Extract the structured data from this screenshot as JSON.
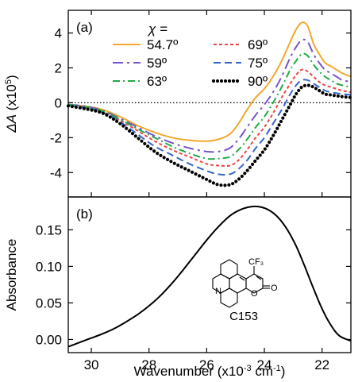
{
  "chart_data": [
    {
      "id": "a",
      "type": "line",
      "panel_label": "(a)",
      "xlabel": "",
      "ylabel": "ΔA (x10⁵)",
      "ylabel_parts": {
        "symbol": "ΔA",
        "open": " (x10",
        "exp": "5",
        "close": ")"
      },
      "xlim": [
        30.8,
        21.0
      ],
      "ylim": [
        -5.4,
        5.3
      ],
      "yticks": [
        4,
        2,
        0,
        -2,
        -4
      ],
      "ytick_labels": [
        "4",
        "2",
        "0",
        "-2",
        "-4"
      ],
      "legend_title": "χ =",
      "legend_placement": "top",
      "grid": false,
      "reference_line": {
        "y": 0,
        "style": "dotted"
      },
      "series": [
        {
          "name": "54.7º",
          "color": "#f2a82c",
          "dash": "solid",
          "x": [
            30.8,
            30.2,
            29.6,
            29.0,
            28.4,
            27.8,
            27.2,
            26.6,
            26.0,
            25.6,
            25.2,
            24.9,
            24.6,
            24.3,
            24.0,
            23.7,
            23.4,
            23.1,
            22.9,
            22.7,
            22.5,
            22.3,
            22.1,
            21.9,
            21.7,
            21.5,
            21.3,
            21.0
          ],
          "y": [
            -0.1,
            -0.2,
            -0.4,
            -0.8,
            -1.3,
            -1.7,
            -2.0,
            -2.15,
            -2.2,
            -2.1,
            -1.8,
            -1.2,
            -0.4,
            0.3,
            0.8,
            1.5,
            2.4,
            3.5,
            4.2,
            4.6,
            4.4,
            3.4,
            2.8,
            2.3,
            2.1,
            1.9,
            1.7,
            1.5
          ]
        },
        {
          "name": "69º",
          "color": "#ee4444",
          "dash": "4,3",
          "x": [
            30.8,
            30.2,
            29.6,
            29.0,
            28.4,
            27.8,
            27.2,
            26.6,
            26.0,
            25.6,
            25.2,
            24.9,
            24.6,
            24.3,
            24.0,
            23.7,
            23.4,
            23.1,
            22.9,
            22.7,
            22.5,
            22.3,
            22.1,
            21.9,
            21.7,
            21.5,
            21.3,
            21.0
          ],
          "y": [
            -0.15,
            -0.25,
            -0.5,
            -1.0,
            -1.6,
            -2.2,
            -2.7,
            -3.1,
            -3.5,
            -3.6,
            -3.6,
            -3.3,
            -2.7,
            -2.0,
            -1.4,
            -0.6,
            0.3,
            1.1,
            1.6,
            1.9,
            1.8,
            1.5,
            1.2,
            1.0,
            0.9,
            0.8,
            0.7,
            0.6
          ]
        },
        {
          "name": "59º",
          "color": "#7755cc",
          "dash": "13,5,3,5",
          "x": [
            30.8,
            30.2,
            29.6,
            29.0,
            28.4,
            27.8,
            27.2,
            26.6,
            26.0,
            25.6,
            25.2,
            24.9,
            24.6,
            24.3,
            24.0,
            23.7,
            23.4,
            23.1,
            22.9,
            22.7,
            22.5,
            22.3,
            22.1,
            21.9,
            21.7,
            21.5,
            21.3,
            21.0
          ],
          "y": [
            -0.1,
            -0.2,
            -0.45,
            -0.9,
            -1.4,
            -1.9,
            -2.3,
            -2.6,
            -2.8,
            -2.8,
            -2.6,
            -2.1,
            -1.4,
            -0.7,
            -0.1,
            0.6,
            1.5,
            2.6,
            3.2,
            3.6,
            3.5,
            2.8,
            2.3,
            1.9,
            1.7,
            1.5,
            1.3,
            1.2
          ]
        },
        {
          "name": "75º",
          "color": "#3366cc",
          "dash": "9,5",
          "x": [
            30.8,
            30.2,
            29.6,
            29.0,
            28.4,
            27.8,
            27.2,
            26.6,
            26.0,
            25.6,
            25.2,
            24.9,
            24.6,
            24.3,
            24.0,
            23.7,
            23.4,
            23.1,
            22.9,
            22.7,
            22.5,
            22.3,
            22.1,
            21.9,
            21.7,
            21.5,
            21.3,
            21.0
          ],
          "y": [
            -0.15,
            -0.3,
            -0.55,
            -1.1,
            -1.8,
            -2.5,
            -3.0,
            -3.5,
            -3.9,
            -4.1,
            -4.1,
            -3.8,
            -3.3,
            -2.6,
            -2.0,
            -1.2,
            -0.4,
            0.5,
            1.0,
            1.3,
            1.3,
            1.1,
            0.9,
            0.7,
            0.6,
            0.55,
            0.5,
            0.45
          ]
        },
        {
          "name": "63º",
          "color": "#22aa44",
          "dash": "9,4,2,4",
          "x": [
            30.8,
            30.2,
            29.6,
            29.0,
            28.4,
            27.8,
            27.2,
            26.6,
            26.0,
            25.6,
            25.2,
            24.9,
            24.6,
            24.3,
            24.0,
            23.7,
            23.4,
            23.1,
            22.9,
            22.7,
            22.5,
            22.3,
            22.1,
            21.9,
            21.7,
            21.5,
            21.3,
            21.0
          ],
          "y": [
            -0.12,
            -0.22,
            -0.48,
            -0.95,
            -1.5,
            -2.0,
            -2.5,
            -2.9,
            -3.2,
            -3.2,
            -3.1,
            -2.7,
            -2.1,
            -1.4,
            -0.8,
            0.0,
            0.9,
            1.9,
            2.4,
            2.8,
            2.7,
            2.2,
            1.8,
            1.5,
            1.3,
            1.1,
            1.0,
            0.9
          ]
        },
        {
          "name": "90º",
          "color": "#000000",
          "dash": "0,5",
          "x": [
            30.8,
            30.2,
            29.6,
            29.0,
            28.4,
            27.8,
            27.2,
            26.6,
            26.0,
            25.6,
            25.2,
            24.9,
            24.6,
            24.3,
            24.0,
            23.7,
            23.4,
            23.1,
            22.9,
            22.7,
            22.5,
            22.3,
            22.1,
            21.9,
            21.7,
            21.5,
            21.3,
            21.0
          ],
          "y": [
            -0.18,
            -0.35,
            -0.6,
            -1.2,
            -2.0,
            -2.8,
            -3.4,
            -3.9,
            -4.4,
            -4.7,
            -4.7,
            -4.4,
            -3.9,
            -3.3,
            -2.7,
            -1.9,
            -1.0,
            -0.1,
            0.5,
            0.9,
            1.0,
            0.9,
            0.7,
            0.5,
            0.45,
            0.4,
            0.35,
            0.3
          ]
        }
      ]
    },
    {
      "id": "b",
      "type": "line",
      "panel_label": "(b)",
      "xlabel": "Wavenumber (x10⁻³ cm⁻¹)",
      "xlabel_parts": {
        "base": "Wavenumber (x10",
        "exp1": "-3",
        "mid": " cm",
        "exp2": "-1",
        "close": ")"
      },
      "ylabel": "Absorbance",
      "xlim": [
        30.8,
        21.0
      ],
      "ylim": [
        -0.018,
        0.195
      ],
      "xticks": [
        30,
        28,
        26,
        24,
        22
      ],
      "xtick_labels": [
        "30",
        "28",
        "26",
        "24",
        "22"
      ],
      "yticks": [
        0.15,
        0.1,
        0.05,
        0.0
      ],
      "ytick_labels": [
        "0.15",
        "0.10",
        "0.05",
        "0.00"
      ],
      "grid": false,
      "inset_label": "C153",
      "inset_substituent": "CF₃",
      "inset_carbonyl": "O",
      "inset_ring_oxygen": "O",
      "inset_nitrogen": "N",
      "series": [
        {
          "name": "",
          "color": "#000000",
          "dash": "solid",
          "x": [
            30.8,
            30.4,
            30.0,
            29.6,
            29.2,
            28.8,
            28.4,
            28.0,
            27.6,
            27.2,
            26.8,
            26.4,
            26.0,
            25.6,
            25.2,
            24.8,
            24.4,
            24.1,
            23.8,
            23.5,
            23.2,
            22.9,
            22.6,
            22.3,
            22.0,
            21.7,
            21.4,
            21.0
          ],
          "y": [
            -0.01,
            -0.004,
            0.002,
            0.008,
            0.015,
            0.024,
            0.034,
            0.046,
            0.06,
            0.077,
            0.096,
            0.116,
            0.136,
            0.154,
            0.169,
            0.178,
            0.182,
            0.181,
            0.176,
            0.166,
            0.15,
            0.128,
            0.1,
            0.07,
            0.042,
            0.02,
            0.005,
            -0.002
          ]
        }
      ]
    }
  ]
}
